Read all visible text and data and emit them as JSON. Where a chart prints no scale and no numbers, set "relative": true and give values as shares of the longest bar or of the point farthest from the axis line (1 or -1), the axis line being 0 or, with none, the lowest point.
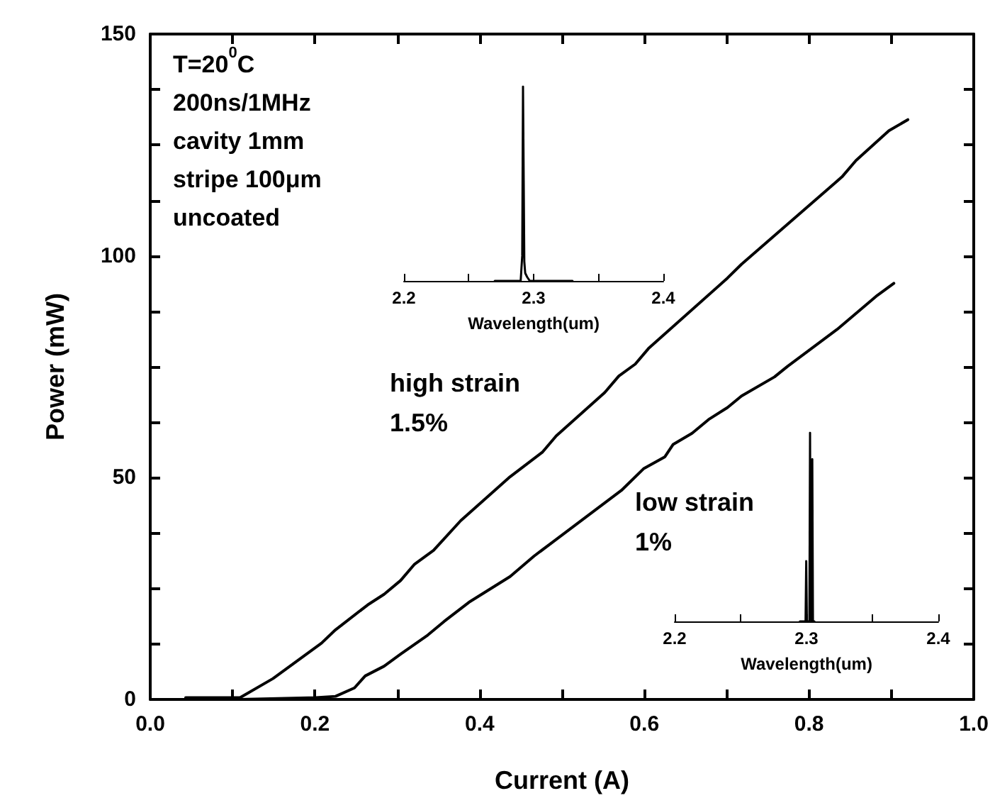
{
  "chart_data": [
    {
      "type": "line",
      "xlabel": "Current (A)",
      "ylabel": "Power (mW)",
      "xlim": [
        0,
        1
      ],
      "ylim": [
        0,
        150
      ],
      "xticks": [
        {
          "value": 0,
          "label": "0.0"
        },
        {
          "value": 0.1,
          "label": null
        },
        {
          "value": 0.2,
          "label": "0.2"
        },
        {
          "value": 0.3,
          "label": null
        },
        {
          "value": 0.4,
          "label": "0.4"
        },
        {
          "value": 0.5,
          "label": null
        },
        {
          "value": 0.6,
          "label": "0.6"
        },
        {
          "value": 0.7,
          "label": null
        },
        {
          "value": 0.8,
          "label": "0.8"
        },
        {
          "value": 0.9,
          "label": null
        },
        {
          "value": 1,
          "label": "1.0"
        }
      ],
      "yticks": [
        0,
        {
          "value": 12.5,
          "label": null
        },
        {
          "value": 25,
          "label": null
        },
        {
          "value": 37.5,
          "label": null
        },
        50,
        {
          "value": 62.5,
          "label": null
        },
        {
          "value": 75,
          "label": null
        },
        {
          "value": 87.5,
          "label": null
        },
        100,
        {
          "value": 112.5,
          "label": null
        },
        {
          "value": 125,
          "label": null
        },
        {
          "value": 137.5,
          "label": null
        },
        150
      ],
      "grid": false,
      "marker": "none",
      "line_style": "solid",
      "annotations": [
        "T=20$^{0}$C",
        "200ns/1MHz",
        "cavity 1mm",
        "stripe 100μm",
        "uncoated"
      ],
      "series": [
        {
          "name": "high strain\n1.5%",
          "color": "#000000",
          "x": [
            0.043,
            0.109,
            0.149,
            0.208,
            0.225,
            0.264,
            0.284,
            0.304,
            0.321,
            0.344,
            0.377,
            0.437,
            0.476,
            0.493,
            0.552,
            0.569,
            0.589,
            0.605,
            0.701,
            0.718,
            0.84,
            0.857,
            0.897,
            0.92
          ],
          "values": [
            0.4,
            0.4,
            4.7,
            12.7,
            15.7,
            21.3,
            23.7,
            26.8,
            30.5,
            33.6,
            40.3,
            50.2,
            55.7,
            59.4,
            69.2,
            72.9,
            75.6,
            79.1,
            95.0,
            98.1,
            117.8,
            121.5,
            128.2,
            130.7
          ]
        },
        {
          "name": "low strain\n1%",
          "color": "#000000",
          "x": [
            0.109,
            0.201,
            0.225,
            0.248,
            0.261,
            0.284,
            0.304,
            0.337,
            0.357,
            0.387,
            0.437,
            0.466,
            0.572,
            0.599,
            0.625,
            0.635,
            0.658,
            0.678,
            0.701,
            0.718,
            0.758,
            0.774,
            0.834,
            0.883,
            0.903
          ],
          "values": [
            0,
            0.4,
            0.7,
            2.6,
            5.3,
            7.5,
            10.2,
            14.5,
            17.6,
            21.9,
            27.7,
            32.3,
            47.1,
            52.0,
            54.7,
            57.5,
            60.0,
            63.1,
            65.8,
            68.4,
            72.7,
            75.1,
            83.4,
            91.1,
            93.8
          ]
        }
      ]
    },
    {
      "type": "line",
      "xlabel": "Wavelength(um)",
      "relative": true,
      "tick_labels": "x",
      "xlim": [
        2.2,
        2.4
      ],
      "xticks": [
        2.2,
        {
          "value": 2.25,
          "label": null
        },
        2.3,
        {
          "value": 2.35,
          "label": null
        },
        2.4
      ],
      "marker": "none",
      "series": [
        {
          "color": "#000000",
          "x": [
            2.27,
            2.29,
            2.2912,
            2.2918,
            2.2922,
            2.2928,
            2.2935,
            2.295,
            2.297,
            2.33
          ],
          "values": [
            0,
            0,
            0.13,
            1,
            1,
            0.1,
            0.04,
            0.02,
            0,
            0
          ]
        }
      ]
    },
    {
      "type": "line",
      "xlabel": "Wavelength(um)",
      "relative": true,
      "tick_labels": "x",
      "xlim": [
        2.2,
        2.4
      ],
      "xticks": [
        2.2,
        {
          "value": 2.25,
          "label": null
        },
        2.3,
        {
          "value": 2.35,
          "label": null
        },
        2.4
      ],
      "marker": "none",
      "series": [
        {
          "color": "#000000",
          "x": [
            2.295,
            2.2993,
            2.2998,
            2.3003,
            2.3022,
            2.3027,
            2.3032,
            2.3039,
            2.3044,
            2.3049,
            2.306
          ],
          "values": [
            0,
            0,
            0.32,
            0,
            0,
            1,
            0.05,
            0,
            0.86,
            0,
            0
          ]
        }
      ]
    }
  ]
}
